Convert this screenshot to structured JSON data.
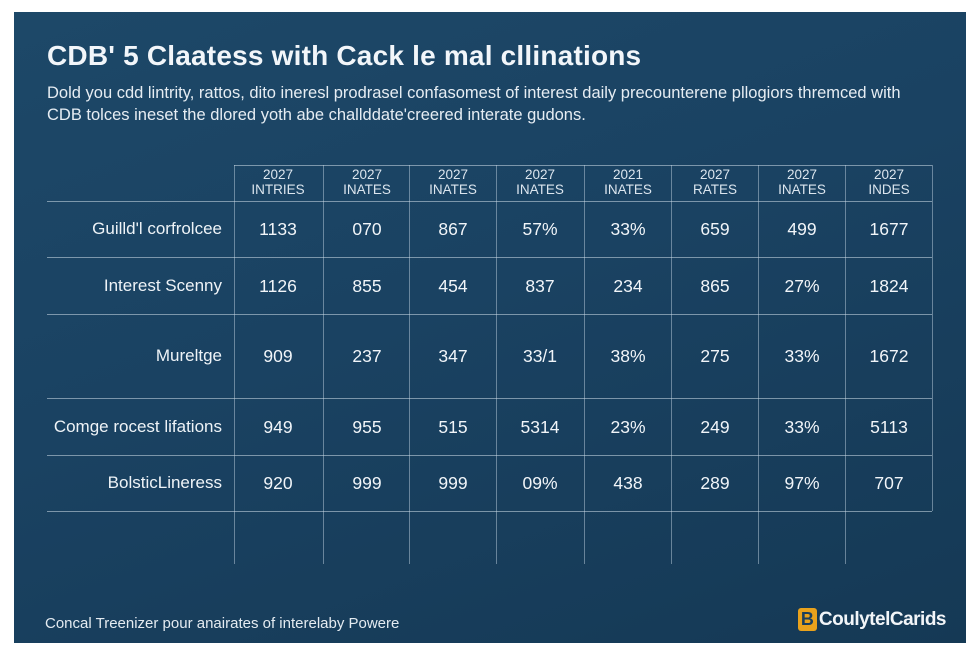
{
  "title": "CDB' 5 Claatess with Cack le mal cllinations",
  "subtitle": "Dold you cdd lintrity, rattos, dito ineresl prodrasel confasomest of interest  daily precounterene pllogiors thremced with CDB tolces ineset the dlored yoth abe challddate'creered interate gudons.",
  "footer": "Concal Treenizer pour anairates of interelaby Powere",
  "brand": {
    "mark": "B",
    "name": "CoulytelCarids"
  },
  "colors": {
    "background": "#1a4262",
    "brand_accent": "#e9a21c",
    "text": "#f1f5f9"
  },
  "chart_data": {
    "type": "table",
    "columns": [
      {
        "year": "2027",
        "label": "INTRIES"
      },
      {
        "year": "2027",
        "label": "INATES"
      },
      {
        "year": "2027",
        "label": "INATES"
      },
      {
        "year": "2027",
        "label": "INATES"
      },
      {
        "year": "2021",
        "label": "INATES"
      },
      {
        "year": "2027",
        "label": "RATES"
      },
      {
        "year": "2027",
        "label": "INATES"
      },
      {
        "year": "2027",
        "label": "INDES"
      }
    ],
    "rows": [
      {
        "label": "Guilld'l corfrolcee",
        "values": [
          "1133",
          "070",
          "867",
          "57%",
          "33%",
          "659",
          "499",
          "1677"
        ]
      },
      {
        "label": "Interest Scenny",
        "values": [
          "1126",
          "855",
          "454",
          "837",
          "234",
          "865",
          "27%",
          "1824"
        ]
      },
      {
        "label": "Mureltge",
        "values": [
          "909",
          "237",
          "347",
          "33/1",
          "38%",
          "275",
          "33%",
          "1672"
        ]
      },
      {
        "label": "Comge rocest lifations",
        "values": [
          "949",
          "955",
          "515",
          "5314",
          "23%",
          "249",
          "33%",
          "5113"
        ]
      },
      {
        "label": "BolsticLineress",
        "values": [
          "920",
          "999",
          "999",
          "09%",
          "438",
          "289",
          "97%",
          "707"
        ]
      }
    ]
  }
}
